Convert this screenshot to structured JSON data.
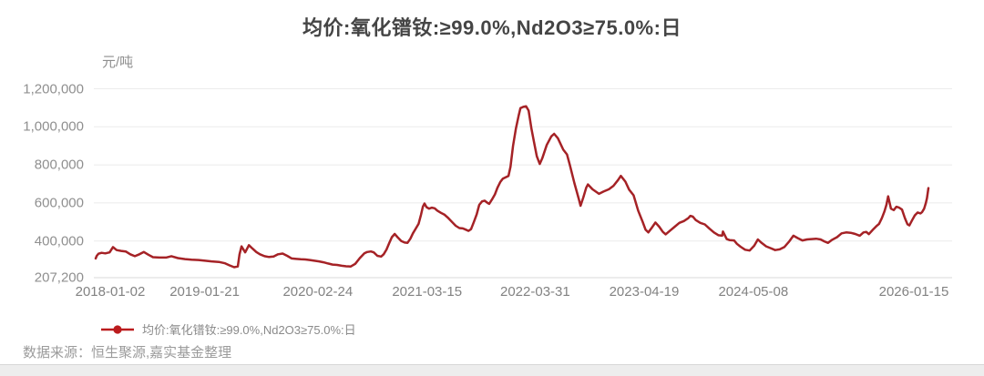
{
  "source": {
    "prefix": "数据来源：",
    "text": "恒生聚源,嘉实基金整理"
  },
  "colors": {
    "line": "#a52226",
    "legend_marker": "#bb1b1d",
    "title_text": "#454545",
    "axis_text": "#8f8f8f",
    "grid": "#ebebeb",
    "axis_line": "#d9d9d9",
    "footer_bg": "#ededed"
  },
  "chart_data": {
    "type": "line",
    "title": "均价:氧化镨钕:≥99.0%,Nd2O3≥75.0%:日",
    "unit_label": "元/吨",
    "xlabel": "",
    "ylabel": "元/吨",
    "grid": true,
    "legend_position": "bottom-left",
    "x_range": [
      "2018-01-02",
      "2026-01-15"
    ],
    "ylim": [
      207200,
      1240000
    ],
    "y_ticks": [
      {
        "label": "1,200,000",
        "value": 1200000
      },
      {
        "label": "1,000,000",
        "value": 1000000
      },
      {
        "label": "800,000",
        "value": 800000
      },
      {
        "label": "600,000",
        "value": 600000
      },
      {
        "label": "400,000",
        "value": 400000
      },
      {
        "label": "207,200",
        "value": 207200
      }
    ],
    "x_ticks": [
      "2018-01-02",
      "2019-01-21",
      "2020-02-24",
      "2021-03-15",
      "2022-03-31",
      "2023-04-19",
      "2024-05-08",
      "2026-01-15"
    ],
    "series": [
      {
        "name": "均价:氧化镨钕:≥99.0%,Nd2O3≥75.0%:日",
        "color": "#a52226",
        "points": [
          [
            "2018-01-02",
            308000
          ],
          [
            "2018-01-06",
            322000
          ],
          [
            "2018-01-12",
            333000
          ],
          [
            "2018-01-23",
            338000
          ],
          [
            "2018-02-05",
            335000
          ],
          [
            "2018-02-20",
            340000
          ],
          [
            "2018-03-04",
            368000
          ],
          [
            "2018-03-17",
            352000
          ],
          [
            "2018-04-02",
            348000
          ],
          [
            "2018-04-18",
            345000
          ],
          [
            "2018-05-04",
            330000
          ],
          [
            "2018-05-20",
            320000
          ],
          [
            "2018-06-05",
            330000
          ],
          [
            "2018-06-21",
            342000
          ],
          [
            "2018-07-07",
            328000
          ],
          [
            "2018-07-23",
            315000
          ],
          [
            "2018-08-15",
            313000
          ],
          [
            "2018-09-07",
            313000
          ],
          [
            "2018-09-26",
            320000
          ],
          [
            "2018-10-19",
            310000
          ],
          [
            "2018-11-13",
            305000
          ],
          [
            "2018-12-06",
            302000
          ],
          [
            "2018-12-31",
            300000
          ],
          [
            "2019-01-23",
            296000
          ],
          [
            "2019-02-14",
            293000
          ],
          [
            "2019-03-12",
            290000
          ],
          [
            "2019-04-03",
            283000
          ],
          [
            "2019-04-19",
            272000
          ],
          [
            "2019-05-05",
            262000
          ],
          [
            "2019-05-18",
            266000
          ],
          [
            "2019-05-24",
            330000
          ],
          [
            "2019-05-31",
            372000
          ],
          [
            "2019-06-13",
            340000
          ],
          [
            "2019-06-26",
            378000
          ],
          [
            "2019-07-09",
            360000
          ],
          [
            "2019-07-22",
            342000
          ],
          [
            "2019-08-04",
            330000
          ],
          [
            "2019-08-20",
            320000
          ],
          [
            "2019-09-05",
            316000
          ],
          [
            "2019-09-21",
            318000
          ],
          [
            "2019-10-07",
            330000
          ],
          [
            "2019-10-23",
            334000
          ],
          [
            "2019-11-08",
            322000
          ],
          [
            "2019-11-24",
            308000
          ],
          [
            "2019-12-10",
            306000
          ],
          [
            "2019-12-26",
            304000
          ],
          [
            "2020-01-11",
            303000
          ],
          [
            "2020-01-27",
            300000
          ],
          [
            "2020-02-12",
            296000
          ],
          [
            "2020-02-28",
            293000
          ],
          [
            "2020-03-15",
            288000
          ],
          [
            "2020-03-31",
            282000
          ],
          [
            "2020-04-16",
            276000
          ],
          [
            "2020-05-02",
            274000
          ],
          [
            "2020-05-18",
            270000
          ],
          [
            "2020-06-03",
            267000
          ],
          [
            "2020-06-19",
            266000
          ],
          [
            "2020-07-05",
            280000
          ],
          [
            "2020-07-21",
            310000
          ],
          [
            "2020-08-06",
            335000
          ],
          [
            "2020-08-16",
            342000
          ],
          [
            "2020-08-29",
            345000
          ],
          [
            "2020-09-08",
            340000
          ],
          [
            "2020-09-21",
            322000
          ],
          [
            "2020-10-04",
            318000
          ],
          [
            "2020-10-13",
            330000
          ],
          [
            "2020-10-23",
            355000
          ],
          [
            "2020-11-02",
            390000
          ],
          [
            "2020-11-11",
            420000
          ],
          [
            "2020-11-21",
            437000
          ],
          [
            "2020-12-01",
            420000
          ],
          [
            "2020-12-14",
            400000
          ],
          [
            "2020-12-26",
            392000
          ],
          [
            "2021-01-05",
            390000
          ],
          [
            "2021-01-15",
            412000
          ],
          [
            "2021-01-24",
            440000
          ],
          [
            "2021-02-03",
            465000
          ],
          [
            "2021-02-13",
            490000
          ],
          [
            "2021-02-22",
            540000
          ],
          [
            "2021-02-28",
            580000
          ],
          [
            "2021-03-06",
            597000
          ],
          [
            "2021-03-13",
            578000
          ],
          [
            "2021-03-22",
            570000
          ],
          [
            "2021-04-01",
            575000
          ],
          [
            "2021-04-11",
            572000
          ],
          [
            "2021-04-20",
            560000
          ],
          [
            "2021-05-03",
            548000
          ],
          [
            "2021-05-16",
            538000
          ],
          [
            "2021-05-29",
            520000
          ],
          [
            "2021-06-11",
            500000
          ],
          [
            "2021-06-24",
            480000
          ],
          [
            "2021-07-07",
            468000
          ],
          [
            "2021-07-19",
            466000
          ],
          [
            "2021-07-29",
            460000
          ],
          [
            "2021-08-08",
            453000
          ],
          [
            "2021-08-17",
            462000
          ],
          [
            "2021-08-27",
            500000
          ],
          [
            "2021-09-06",
            540000
          ],
          [
            "2021-09-15",
            590000
          ],
          [
            "2021-09-25",
            608000
          ],
          [
            "2021-10-04",
            612000
          ],
          [
            "2021-10-14",
            600000
          ],
          [
            "2021-10-20",
            595000
          ],
          [
            "2021-10-30",
            618000
          ],
          [
            "2021-11-09",
            645000
          ],
          [
            "2021-11-18",
            680000
          ],
          [
            "2021-11-28",
            710000
          ],
          [
            "2021-12-07",
            728000
          ],
          [
            "2021-12-17",
            735000
          ],
          [
            "2021-12-27",
            742000
          ],
          [
            "2022-01-03",
            790000
          ],
          [
            "2022-01-12",
            900000
          ],
          [
            "2022-01-22",
            990000
          ],
          [
            "2022-02-01",
            1060000
          ],
          [
            "2022-02-07",
            1098000
          ],
          [
            "2022-02-17",
            1105000
          ],
          [
            "2022-02-27",
            1108000
          ],
          [
            "2022-03-08",
            1085000
          ],
          [
            "2022-03-18",
            990000
          ],
          [
            "2022-03-27",
            920000
          ],
          [
            "2022-04-06",
            845000
          ],
          [
            "2022-04-16",
            805000
          ],
          [
            "2022-04-25",
            835000
          ],
          [
            "2022-05-11",
            905000
          ],
          [
            "2022-05-27",
            950000
          ],
          [
            "2022-06-06",
            963000
          ],
          [
            "2022-06-19",
            940000
          ],
          [
            "2022-07-08",
            880000
          ],
          [
            "2022-07-21",
            855000
          ],
          [
            "2022-07-31",
            800000
          ],
          [
            "2022-08-16",
            705000
          ],
          [
            "2022-09-01",
            620000
          ],
          [
            "2022-09-07",
            585000
          ],
          [
            "2022-09-17",
            630000
          ],
          [
            "2022-09-27",
            680000
          ],
          [
            "2022-10-03",
            697000
          ],
          [
            "2022-10-19",
            672000
          ],
          [
            "2022-11-04",
            655000
          ],
          [
            "2022-11-11",
            648000
          ],
          [
            "2022-11-27",
            660000
          ],
          [
            "2022-12-16",
            672000
          ],
          [
            "2023-01-01",
            690000
          ],
          [
            "2023-01-17",
            720000
          ],
          [
            "2023-01-27",
            742000
          ],
          [
            "2023-02-12",
            712000
          ],
          [
            "2023-02-25",
            670000
          ],
          [
            "2023-03-13",
            640000
          ],
          [
            "2023-03-29",
            560000
          ],
          [
            "2023-04-14",
            500000
          ],
          [
            "2023-04-24",
            460000
          ],
          [
            "2023-05-04",
            445000
          ],
          [
            "2023-05-16",
            470000
          ],
          [
            "2023-05-29",
            497000
          ],
          [
            "2023-06-11",
            475000
          ],
          [
            "2023-06-24",
            448000
          ],
          [
            "2023-07-04",
            435000
          ],
          [
            "2023-07-20",
            455000
          ],
          [
            "2023-08-05",
            475000
          ],
          [
            "2023-08-21",
            495000
          ],
          [
            "2023-09-06",
            505000
          ],
          [
            "2023-09-22",
            520000
          ],
          [
            "2023-09-29",
            532000
          ],
          [
            "2023-10-08",
            528000
          ],
          [
            "2023-10-18",
            510000
          ],
          [
            "2023-11-03",
            495000
          ],
          [
            "2023-11-19",
            487000
          ],
          [
            "2023-12-05",
            465000
          ],
          [
            "2023-12-21",
            445000
          ],
          [
            "2024-01-06",
            430000
          ],
          [
            "2024-01-19",
            428000
          ],
          [
            "2024-01-22",
            450000
          ],
          [
            "2024-02-04",
            410000
          ],
          [
            "2024-02-14",
            405000
          ],
          [
            "2024-03-01",
            403000
          ],
          [
            "2024-03-11",
            385000
          ],
          [
            "2024-03-24",
            370000
          ],
          [
            "2024-04-09",
            354000
          ],
          [
            "2024-04-25",
            350000
          ],
          [
            "2024-05-11",
            375000
          ],
          [
            "2024-05-24",
            408000
          ],
          [
            "2024-06-06",
            390000
          ],
          [
            "2024-06-22",
            372000
          ],
          [
            "2024-07-08",
            362000
          ],
          [
            "2024-07-24",
            352000
          ],
          [
            "2024-08-09",
            356000
          ],
          [
            "2024-08-25",
            368000
          ],
          [
            "2024-09-10",
            395000
          ],
          [
            "2024-09-26",
            428000
          ],
          [
            "2024-10-12",
            415000
          ],
          [
            "2024-10-28",
            403000
          ],
          [
            "2024-11-13",
            408000
          ],
          [
            "2024-11-29",
            410000
          ],
          [
            "2024-12-15",
            412000
          ],
          [
            "2024-12-31",
            408000
          ],
          [
            "2025-01-13",
            398000
          ],
          [
            "2025-01-26",
            390000
          ],
          [
            "2025-02-08",
            405000
          ],
          [
            "2025-02-27",
            420000
          ],
          [
            "2025-03-15",
            440000
          ],
          [
            "2025-03-31",
            445000
          ],
          [
            "2025-04-16",
            443000
          ],
          [
            "2025-05-02",
            437000
          ],
          [
            "2025-05-18",
            428000
          ],
          [
            "2025-05-31",
            445000
          ],
          [
            "2025-06-10",
            448000
          ],
          [
            "2025-06-19",
            436000
          ],
          [
            "2025-07-05",
            462000
          ],
          [
            "2025-07-15",
            477000
          ],
          [
            "2025-07-25",
            490000
          ],
          [
            "2025-08-04",
            520000
          ],
          [
            "2025-08-13",
            555000
          ],
          [
            "2025-08-20",
            590000
          ],
          [
            "2025-08-26",
            635000
          ],
          [
            "2025-09-05",
            570000
          ],
          [
            "2025-09-15",
            562000
          ],
          [
            "2025-09-24",
            580000
          ],
          [
            "2025-10-04",
            575000
          ],
          [
            "2025-10-14",
            565000
          ],
          [
            "2025-10-24",
            520000
          ],
          [
            "2025-11-02",
            488000
          ],
          [
            "2025-11-09",
            482000
          ],
          [
            "2025-11-19",
            510000
          ],
          [
            "2025-11-28",
            535000
          ],
          [
            "2025-12-08",
            550000
          ],
          [
            "2025-12-18",
            545000
          ],
          [
            "2025-12-24",
            552000
          ],
          [
            "2025-12-31",
            570000
          ],
          [
            "2026-01-06",
            600000
          ],
          [
            "2026-01-10",
            625000
          ],
          [
            "2026-01-15",
            678000
          ]
        ]
      }
    ]
  }
}
